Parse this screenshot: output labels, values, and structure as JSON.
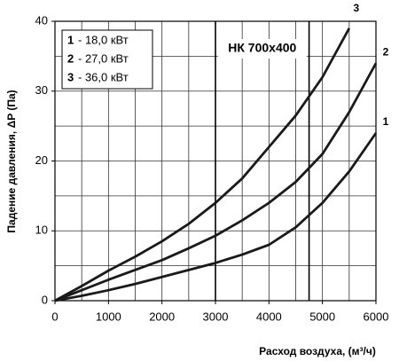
{
  "chart_data": {
    "type": "line",
    "annotation": "НК 700х400",
    "x_label": "Расход воздуха, (м³/ч)",
    "y_label": "Падение давления, ΔP (Па)",
    "x": [
      0,
      500,
      1000,
      1500,
      2000,
      2500,
      3000,
      3500,
      4000,
      4500,
      5000,
      5500,
      6000
    ],
    "series": [
      {
        "label": "1",
        "name": "- 18,0 кВт",
        "color": "#1a1a1a",
        "values": [
          0,
          0.7,
          1.5,
          2.4,
          3.4,
          4.4,
          5.4,
          6.6,
          8,
          10.5,
          14,
          18.5,
          24
        ]
      },
      {
        "label": "2",
        "name": "- 27,0 кВт",
        "color": "#1a1a1a",
        "values": [
          0,
          1.5,
          3,
          4.4,
          5.8,
          7.5,
          9.3,
          11.5,
          14,
          17,
          21,
          27,
          34
        ]
      },
      {
        "label": "3",
        "name": "- 36,0 кВт",
        "color": "#1a1a1a",
        "values": [
          0,
          2.1,
          4.3,
          6.3,
          8.5,
          11,
          14,
          17.5,
          22,
          26.5,
          32,
          39,
          null
        ]
      }
    ],
    "xlim": [
      0,
      6000
    ],
    "ylim": [
      0,
      40
    ],
    "xticks": [
      0,
      1000,
      2000,
      3000,
      4000,
      5000,
      6000
    ],
    "yticks": [
      0,
      10,
      20,
      30,
      40
    ],
    "xgrid": [
      0,
      500,
      1000,
      1500,
      2000,
      2500,
      3000,
      3500,
      4000,
      4500,
      5000,
      5500,
      6000
    ],
    "ygrid": [
      0,
      5,
      10,
      15,
      20,
      25,
      30,
      35,
      40
    ],
    "vlines": [
      3000,
      4750
    ],
    "grid": true
  }
}
